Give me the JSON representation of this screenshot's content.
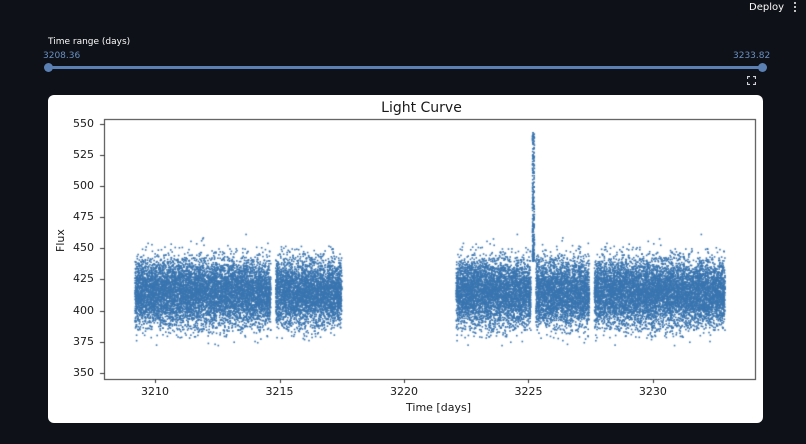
{
  "header": {
    "deploy_label": "Deploy",
    "menu_icon": "vertical-ellipsis-icon"
  },
  "slider": {
    "label": "Time range (days)",
    "min_value": "3208.36",
    "max_value": "3233.82",
    "color": "#5b80b3"
  },
  "toolbar": {
    "fullscreen_icon": "fullscreen-expand-icon"
  },
  "chart_data": {
    "type": "scatter",
    "title": "Light Curve",
    "xlabel": "Time [days]",
    "ylabel": "Flux",
    "xlim": [
      3207.95,
      3234.1
    ],
    "ylim": [
      345,
      554
    ],
    "xticks": [
      3210,
      3215,
      3220,
      3225,
      3230
    ],
    "yticks": [
      350,
      375,
      400,
      425,
      450,
      475,
      500,
      525,
      550
    ],
    "grid": false,
    "marker_color": "#3a75b0",
    "baseline_flux_median": 415,
    "typical_flux_range": [
      380,
      450
    ],
    "outlier_flux_range": [
      355,
      478
    ],
    "segments": [
      {
        "start": 3209.2,
        "end": 3214.65
      },
      {
        "start": 3214.85,
        "end": 3217.5
      },
      {
        "start": 3222.1,
        "end": 3225.1
      },
      {
        "start": 3225.3,
        "end": 3227.45
      },
      {
        "start": 3227.65,
        "end": 3232.9
      }
    ],
    "data_gaps": [
      {
        "start": 3214.65,
        "end": 3214.85
      },
      {
        "start": 3217.5,
        "end": 3222.1
      },
      {
        "start": 3227.45,
        "end": 3227.65
      }
    ],
    "flare": {
      "time": 3225.2,
      "peak_flux": 543
    }
  }
}
